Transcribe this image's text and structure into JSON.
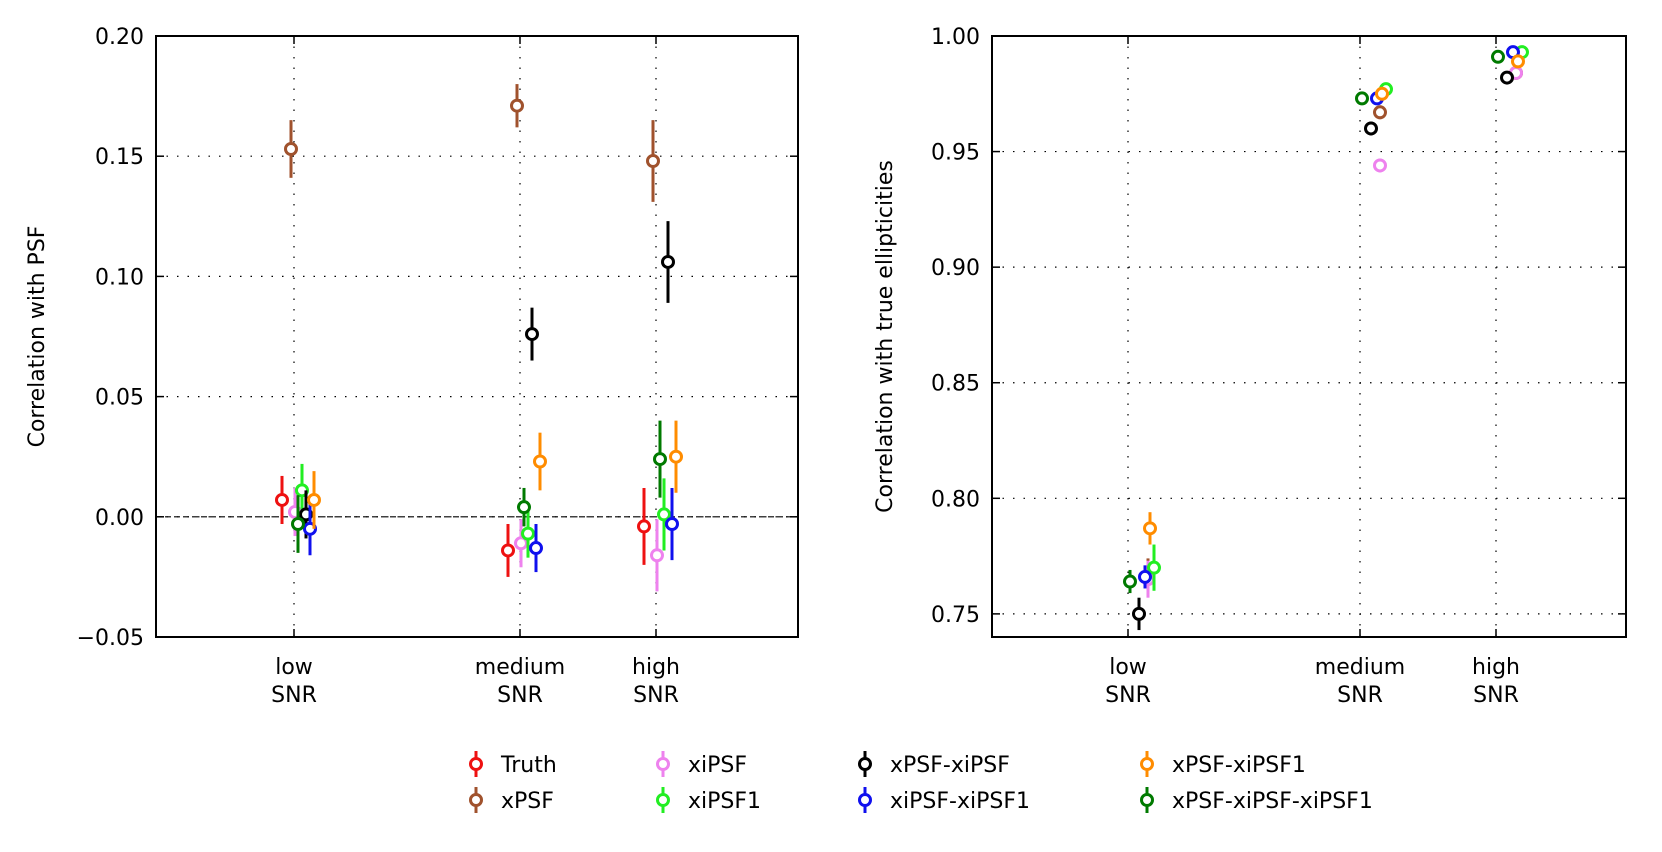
{
  "chart_data": [
    {
      "type": "scatter",
      "panel": "left",
      "title": "",
      "xlabel": "",
      "ylabel": "Correlation with PSF",
      "categories": [
        [
          "low",
          "SNR"
        ],
        [
          "medium",
          "SNR"
        ],
        [
          "high",
          "SNR"
        ]
      ],
      "ylim": [
        -0.05,
        0.2
      ],
      "yticks": [
        -0.05,
        0.0,
        0.05,
        0.1,
        0.15,
        0.2
      ],
      "ytick_labels": [
        "−0.05",
        "0.00",
        "0.05",
        "0.10",
        "0.15",
        "0.20"
      ],
      "grid": true,
      "zero_line": true,
      "series": [
        {
          "name": "Truth",
          "values": [
            0.007,
            -0.014,
            -0.004
          ],
          "errors": [
            0.01,
            0.011,
            0.016
          ]
        },
        {
          "name": "xPSF",
          "values": [
            0.153,
            0.171,
            0.148
          ],
          "errors": [
            0.012,
            0.009,
            0.017
          ]
        },
        {
          "name": "xiPSF",
          "values": [
            0.002,
            -0.011,
            -0.016
          ],
          "errors": [
            0.01,
            0.01,
            0.015
          ]
        },
        {
          "name": "xiPSF1",
          "values": [
            0.011,
            -0.007,
            0.001
          ],
          "errors": [
            0.011,
            0.01,
            0.015
          ]
        },
        {
          "name": "xPSF-xiPSF",
          "values": [
            0.001,
            0.076,
            0.106
          ],
          "errors": [
            0.01,
            0.011,
            0.017
          ]
        },
        {
          "name": "xiPSF-xiPSF1",
          "values": [
            -0.005,
            -0.013,
            -0.003
          ],
          "errors": [
            0.011,
            0.01,
            0.015
          ]
        },
        {
          "name": "xPSF-xiPSF1",
          "values": [
            0.007,
            0.023,
            0.025
          ],
          "errors": [
            0.012,
            0.012,
            0.015
          ]
        },
        {
          "name": "xPSF-xiPSF-xiPSF1",
          "values": [
            -0.003,
            0.004,
            0.024
          ],
          "errors": [
            0.012,
            0.008,
            0.016
          ]
        }
      ]
    },
    {
      "type": "scatter",
      "panel": "right",
      "title": "",
      "xlabel": "",
      "ylabel": "Correlation with true ellipticities",
      "categories": [
        [
          "low",
          "SNR"
        ],
        [
          "medium",
          "SNR"
        ],
        [
          "high",
          "SNR"
        ]
      ],
      "ylim": [
        0.74,
        1.0
      ],
      "yticks": [
        0.75,
        0.8,
        0.85,
        0.9,
        0.95,
        1.0
      ],
      "ytick_labels": [
        "0.75",
        "0.80",
        "0.85",
        "0.90",
        "0.95",
        "1.00"
      ],
      "grid": true,
      "series": [
        {
          "name": "xPSF",
          "values": [
            0.766,
            0.967,
            0.984
          ],
          "errors": [
            0.008,
            0.003,
            0.002
          ]
        },
        {
          "name": "xiPSF",
          "values": [
            0.765,
            0.944,
            0.984
          ],
          "errors": [
            0.008,
            0.003,
            0.002
          ]
        },
        {
          "name": "xiPSF1",
          "values": [
            0.77,
            0.977,
            0.993
          ],
          "errors": [
            0.01,
            0.002,
            0.001
          ]
        },
        {
          "name": "xPSF-xiPSF",
          "values": [
            0.75,
            0.96,
            0.982
          ],
          "errors": [
            0.007,
            0.003,
            0.002
          ]
        },
        {
          "name": "xiPSF-xiPSF1",
          "values": [
            0.766,
            0.973,
            0.993
          ],
          "errors": [
            0.005,
            0.002,
            0.001
          ]
        },
        {
          "name": "xPSF-xiPSF1",
          "values": [
            0.787,
            0.975,
            0.989
          ],
          "errors": [
            0.007,
            0.002,
            0.001
          ]
        },
        {
          "name": "xPSF-xiPSF-xiPSF1",
          "values": [
            0.764,
            0.973,
            0.991
          ],
          "errors": [
            0.005,
            0.002,
            0.001
          ]
        }
      ]
    }
  ],
  "legend": {
    "placement": "bottom-center",
    "entries": [
      {
        "name": "Truth",
        "color": "#ee1111"
      },
      {
        "name": "xPSF",
        "color": "#a0522d"
      },
      {
        "name": "xiPSF",
        "color": "#ee82ee"
      },
      {
        "name": "xiPSF1",
        "color": "#22ee22"
      },
      {
        "name": "xPSF-xiPSF",
        "color": "#000000"
      },
      {
        "name": "xiPSF-xiPSF1",
        "color": "#1010ee"
      },
      {
        "name": "xPSF-xiPSF1",
        "color": "#ff8c00"
      },
      {
        "name": "xPSF-xiPSF-xiPSF1",
        "color": "#007a00"
      }
    ]
  }
}
